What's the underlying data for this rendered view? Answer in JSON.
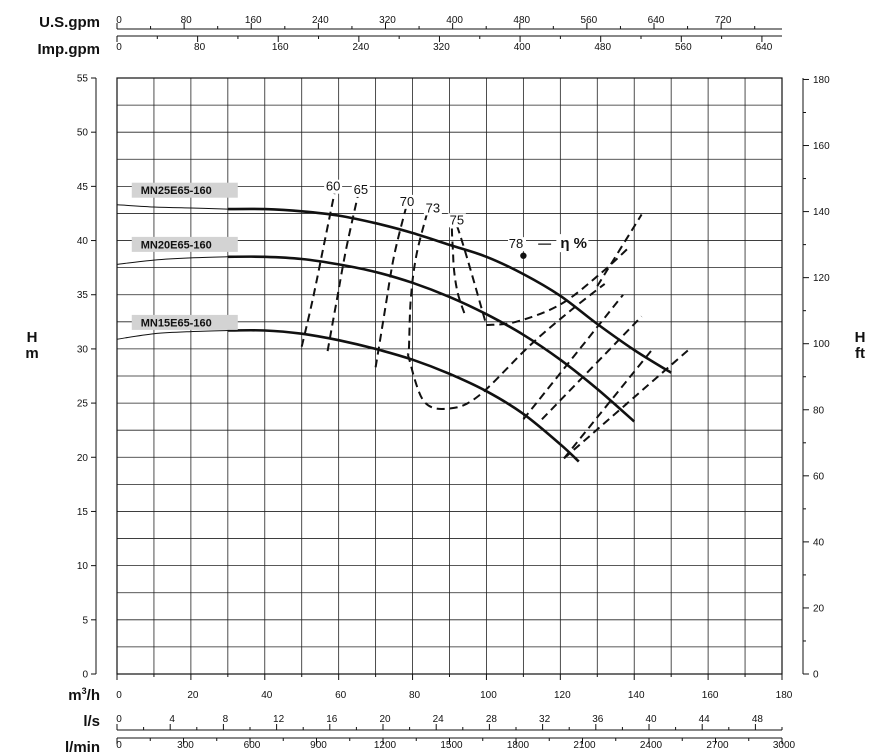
{
  "chart_data": {
    "type": "line",
    "x_primary": {
      "label": "m³/h",
      "label_base": "m",
      "label_sup": "3",
      "label_tail": "/h",
      "range": [
        0,
        180
      ],
      "ticks": [
        0,
        20,
        40,
        60,
        80,
        100,
        120,
        140,
        160,
        180
      ]
    },
    "x_secondary_axes": [
      {
        "label": "U.S.gpm",
        "ticks": [
          0,
          80,
          160,
          240,
          320,
          400,
          480,
          560,
          640,
          720
        ]
      },
      {
        "label": "Imp.gpm",
        "ticks": [
          0,
          80,
          160,
          240,
          320,
          400,
          480,
          560,
          640
        ]
      },
      {
        "label": "l/s",
        "ticks": [
          0,
          4,
          8,
          12,
          16,
          20,
          24,
          28,
          32,
          36,
          40,
          44,
          48
        ]
      },
      {
        "label": "l/min",
        "ticks": [
          0,
          300,
          600,
          900,
          1200,
          1500,
          1800,
          2100,
          2400,
          2700,
          3000
        ]
      }
    ],
    "y_left": {
      "label_top": "H",
      "label_bottom": "m",
      "range": [
        0,
        55
      ],
      "ticks": [
        0,
        5,
        10,
        15,
        20,
        25,
        30,
        35,
        40,
        45,
        50,
        55
      ]
    },
    "y_right": {
      "label_top": "H",
      "label_bottom": "ft",
      "ticks": [
        0,
        20,
        40,
        60,
        80,
        100,
        120,
        140,
        160,
        180
      ]
    },
    "grid": true,
    "series": [
      {
        "name": "MN25E65-160",
        "label_pos": [
          4,
          44.6
        ],
        "thin": [
          [
            0,
            43.3
          ],
          [
            10,
            43.1
          ],
          [
            20,
            43.0
          ],
          [
            30,
            42.9
          ]
        ],
        "points": [
          [
            30,
            42.9
          ],
          [
            40,
            42.9
          ],
          [
            50,
            42.7
          ],
          [
            60,
            42.3
          ],
          [
            70,
            41.6
          ],
          [
            80,
            40.7
          ],
          [
            90,
            39.6
          ],
          [
            100,
            38.5
          ],
          [
            110,
            36.9
          ],
          [
            120,
            34.9
          ],
          [
            130,
            32.3
          ],
          [
            140,
            29.9
          ],
          [
            150,
            27.8
          ],
          [
            155,
            27.8
          ]
        ]
      },
      {
        "name": "MN20E65-160",
        "label_pos": [
          4,
          39.6
        ],
        "thin": [
          [
            0,
            37.8
          ],
          [
            10,
            38.2
          ],
          [
            20,
            38.4
          ],
          [
            30,
            38.5
          ]
        ],
        "points": [
          [
            30,
            38.5
          ],
          [
            40,
            38.5
          ],
          [
            50,
            38.3
          ],
          [
            60,
            37.8
          ],
          [
            70,
            37.1
          ],
          [
            80,
            36.1
          ],
          [
            90,
            34.8
          ],
          [
            100,
            33.2
          ],
          [
            110,
            31.3
          ],
          [
            120,
            29.0
          ],
          [
            130,
            26.3
          ],
          [
            140,
            23.3
          ],
          [
            145,
            24.5
          ]
        ]
      },
      {
        "name": "MN15E65-160",
        "label_pos": [
          4,
          32.4
        ],
        "thin": [
          [
            0,
            30.9
          ],
          [
            10,
            31.4
          ],
          [
            20,
            31.6
          ],
          [
            30,
            31.7
          ]
        ],
        "points": [
          [
            30,
            31.7
          ],
          [
            40,
            31.7
          ],
          [
            50,
            31.4
          ],
          [
            60,
            30.8
          ],
          [
            70,
            30.0
          ],
          [
            80,
            29.0
          ],
          [
            90,
            27.7
          ],
          [
            100,
            26.1
          ],
          [
            110,
            24.0
          ],
          [
            120,
            21.2
          ],
          [
            125,
            19.6
          ],
          [
            127,
            18.8
          ]
        ]
      }
    ],
    "efficiency": {
      "label": "η %",
      "label_pos": [
        120,
        39.3
      ],
      "marked_value": "78",
      "marker_point": [
        110,
        38.6
      ],
      "marker_label_pos": [
        108,
        39.3
      ],
      "marker_dash": [
        [
          114,
          39.3
        ],
        [
          117.5,
          39.3
        ]
      ],
      "curves": [
        {
          "value": "60",
          "label_pos": [
            58.5,
            44.6
          ],
          "points": [
            [
              50,
              30.2
            ],
            [
              53,
              34.6
            ],
            [
              56,
              39.6
            ],
            [
              59,
              44.6
            ]
          ]
        },
        {
          "value": "65",
          "label_pos": [
            66,
            44.3
          ],
          "points": [
            [
              57,
              29.8
            ],
            [
              59.5,
              34.5
            ],
            [
              62,
              39.2
            ],
            [
              65.5,
              44.6
            ]
          ]
        },
        {
          "value": "70",
          "label_pos": [
            78.5,
            43.2
          ],
          "points": [
            [
              70,
              28.3
            ],
            [
              72.5,
              33.5
            ],
            [
              75,
              38.6
            ],
            [
              78.5,
              43.4
            ]
          ]
        },
        {
          "value": "73",
          "label_pos": [
            85.5,
            42.6
          ],
          "points": [
            [
              79,
              30.0
            ],
            [
              79.5,
              34.5
            ],
            [
              81,
              38.6
            ],
            [
              84,
              42.6
            ],
            [
              78.7,
              29.5
            ],
            [
              83,
              25.2
            ],
            [
              90,
              24.5
            ],
            [
              98,
              25.7
            ],
            [
              112,
              30.4
            ],
            [
              123,
              33.6
            ],
            [
              132,
              36.0
            ]
          ]
        },
        {
          "value": "75",
          "label_pos": [
            92,
            41.5
          ],
          "points": [
            [
              91.5,
              41.8
            ],
            [
              91,
              38.5
            ],
            [
              92,
              35.5
            ],
            [
              94,
              33.3
            ],
            [
              100,
              32.2
            ],
            [
              108,
              32.5
            ],
            [
              120,
              34.1
            ],
            [
              131,
              37.0
            ],
            [
              139,
              39.5
            ]
          ]
        }
      ],
      "extensions": [
        {
          "points": [
            [
              130,
              35.8
            ],
            [
              142,
              42.4
            ]
          ]
        },
        {
          "points": [
            [
              110,
              23.5
            ],
            [
              137,
              35.0
            ]
          ]
        },
        {
          "points": [
            [
              115,
              23.5
            ],
            [
              142,
              33.0
            ]
          ]
        },
        {
          "points": [
            [
              121,
              19.9
            ],
            [
              145,
              30.0
            ]
          ]
        },
        {
          "points": [
            [
              121,
              19.9
            ],
            [
              155,
              30.0
            ]
          ]
        }
      ]
    }
  }
}
